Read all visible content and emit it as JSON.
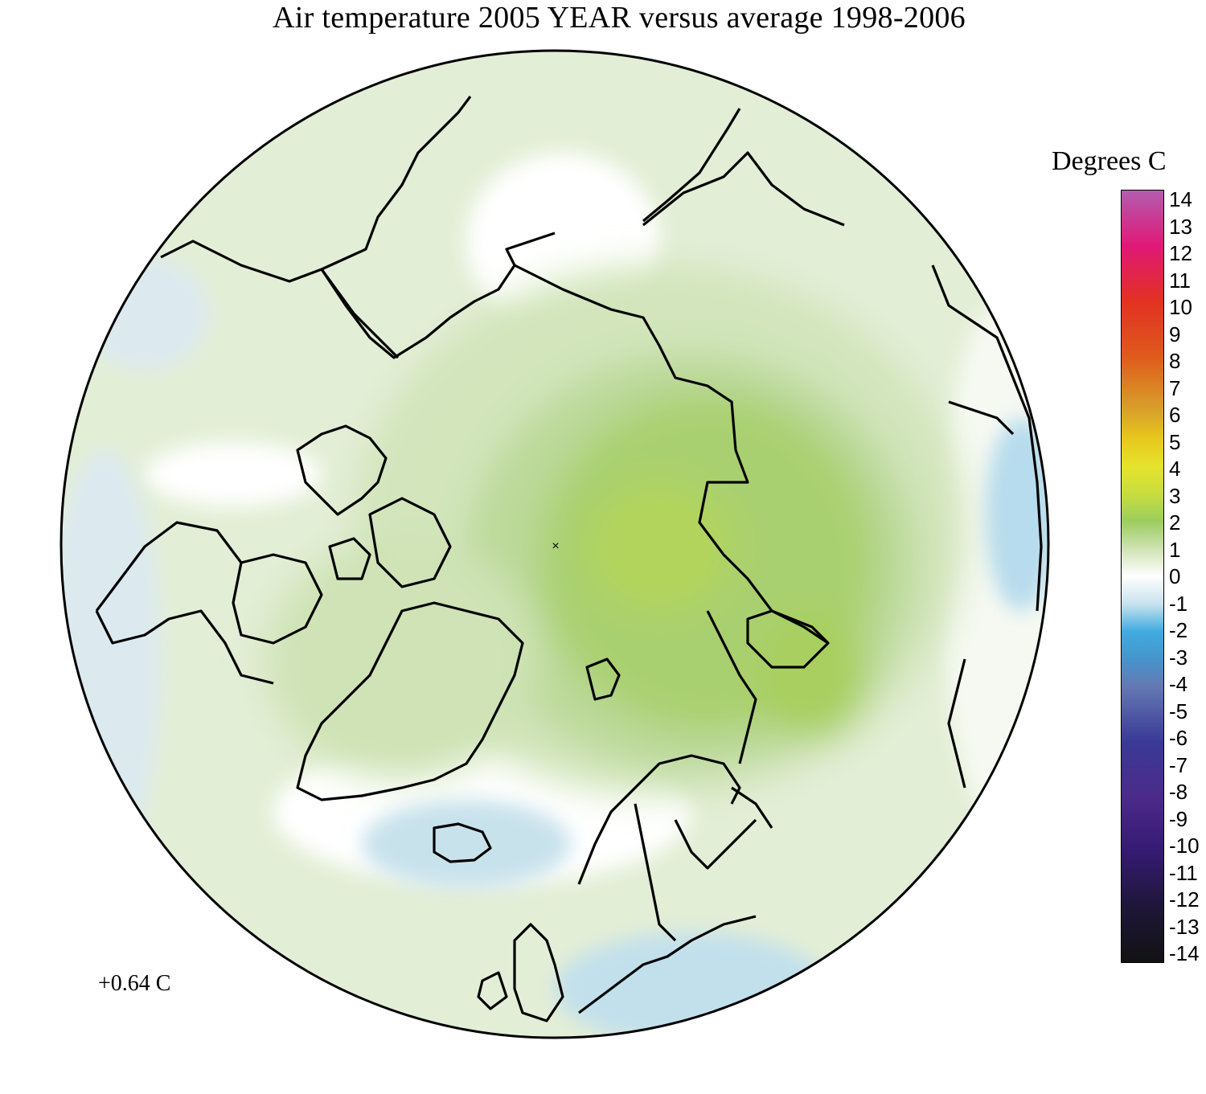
{
  "title": "Air temperature 2005 YEAR versus average 1998-2006",
  "colorbar": {
    "unit_label": "Degrees C",
    "ticks": [
      "14",
      "13",
      "12",
      "11",
      "10",
      "9",
      "8",
      "7",
      "6",
      "5",
      "4",
      "3",
      "2",
      "1",
      "0",
      "-1",
      "-2",
      "-3",
      "-4",
      "-5",
      "-6",
      "-7",
      "-8",
      "-9",
      "-10",
      "-11",
      "-12",
      "-13",
      "-14"
    ],
    "range": [
      -14,
      14
    ],
    "colors": {
      "14": "#b35db0",
      "12": "#e01877",
      "10": "#e23122",
      "8": "#df5a1c",
      "6": "#d8a22a",
      "5": "#e8c71d",
      "4": "#e6e32c",
      "3": "#c8de3e",
      "2": "#9ccd5e",
      "1": "#cfe3b4",
      "0": "#ffffff",
      "-1": "#c8e3ee",
      "-2": "#41abe0",
      "-3": "#4595cb",
      "-4": "#6478b2",
      "-6": "#3a3a96",
      "-8": "#4c2a8a",
      "-10": "#351a72",
      "-12": "#1e1638",
      "-14": "#121212"
    }
  },
  "map": {
    "projection": "polar stereographic, North Pole centered",
    "colors": {
      "coastline": "#000000",
      "warm_core": "#a9d06f",
      "warm_mid": "#bcd99a",
      "warm_light": "#d7e8c2",
      "neutral": "#ffffff",
      "cool_light": "#dceaf0",
      "cool_mid": "#b7dced"
    }
  },
  "annotation": {
    "mean_anomaly": "+0.64 C"
  }
}
